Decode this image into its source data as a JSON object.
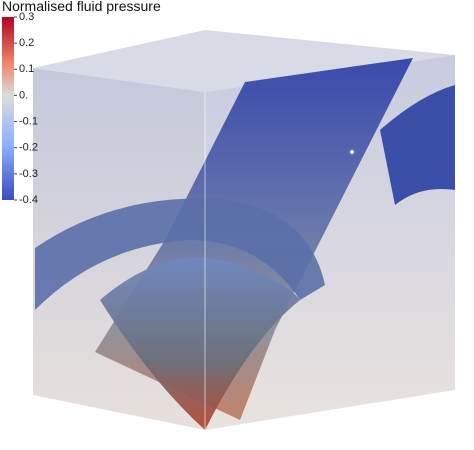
{
  "colorbar": {
    "title": "Normalised fluid pressure",
    "range": [
      -0.4,
      0.3
    ],
    "ticks": [
      0.3,
      0.2,
      0.1,
      {
        "value": 0,
        "label": "0."
      },
      -0.1,
      -0.2,
      -0.3,
      -0.4
    ]
  }
}
